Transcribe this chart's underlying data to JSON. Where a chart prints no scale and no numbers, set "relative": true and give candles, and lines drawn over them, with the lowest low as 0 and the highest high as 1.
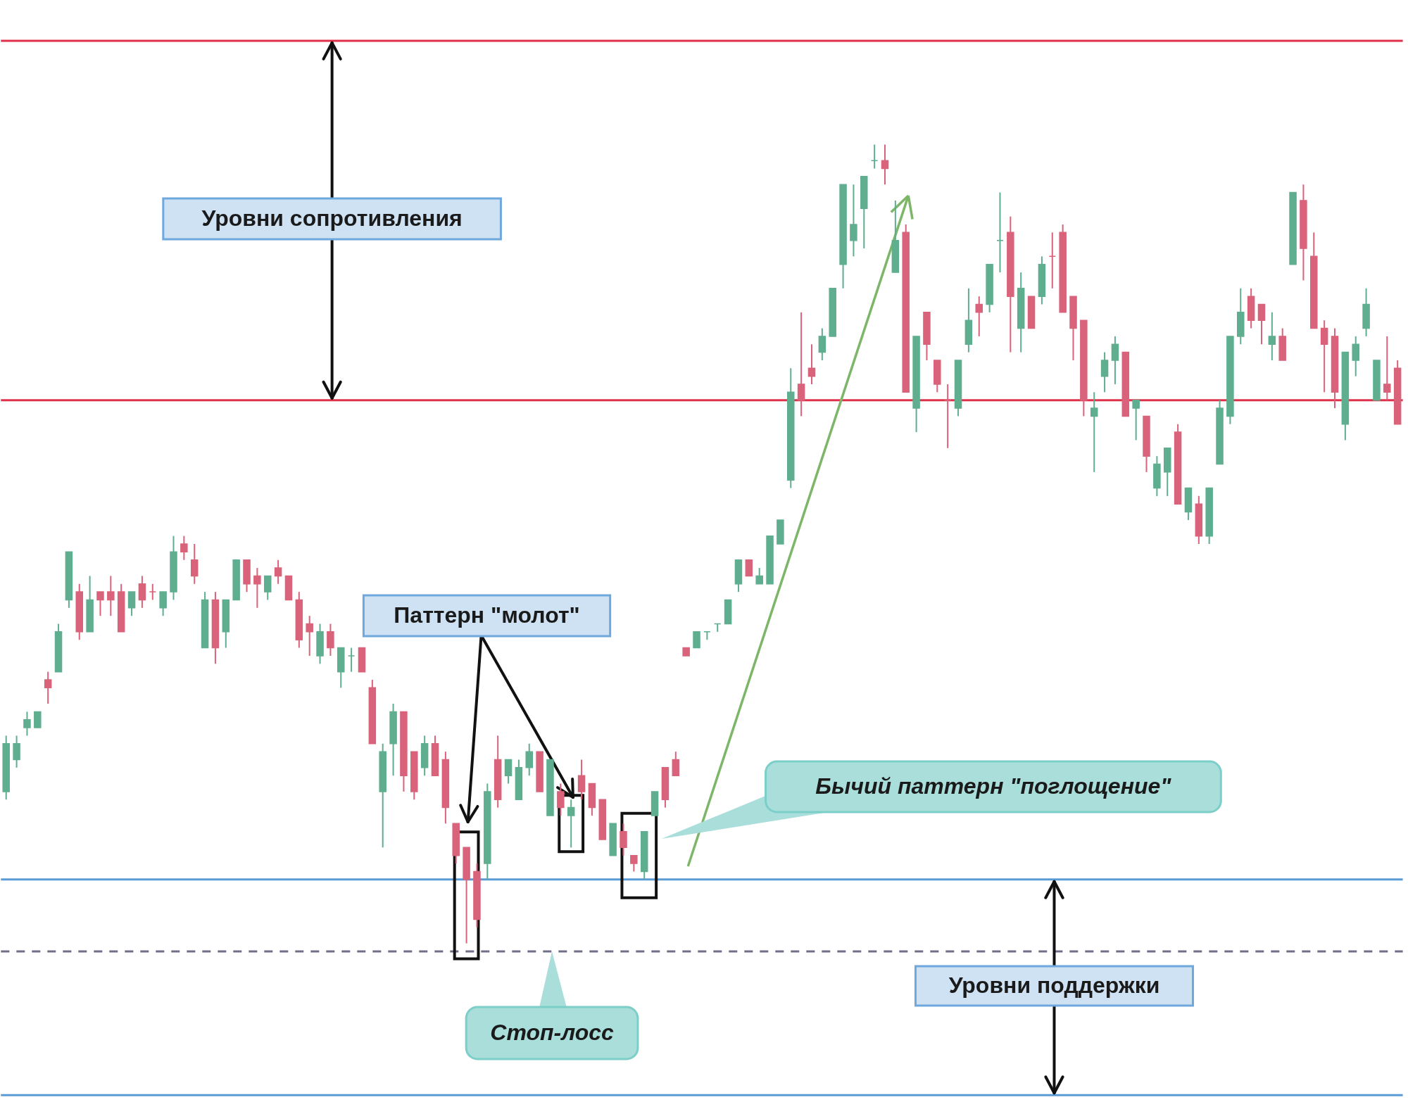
{
  "chart_data": {
    "type": "candlestick",
    "relative": true,
    "categories": [
      null,
      null,
      null,
      null,
      null,
      null,
      null,
      null,
      null,
      null,
      null,
      null,
      null,
      null,
      null,
      null,
      null,
      null,
      null,
      null,
      null,
      null,
      null,
      null,
      null,
      null,
      null,
      null,
      null,
      null,
      null,
      null,
      null,
      null,
      null,
      null,
      null,
      null,
      null,
      null,
      null,
      null,
      null,
      null,
      null,
      null,
      null,
      null,
      null,
      null,
      null,
      null,
      null,
      null,
      null,
      null,
      null,
      null,
      null,
      null,
      null,
      null,
      null,
      null,
      null,
      null,
      null,
      null,
      null,
      null,
      null,
      null,
      null,
      null,
      null,
      null,
      null,
      null,
      null,
      null,
      null,
      null,
      null,
      null,
      null,
      null,
      null,
      null,
      null,
      null,
      null,
      null,
      null,
      null,
      null,
      null,
      null,
      null,
      null,
      null,
      null,
      null,
      null,
      null,
      null,
      null,
      null,
      null,
      null,
      null,
      null,
      null,
      null,
      null,
      null,
      null,
      null,
      null,
      null,
      null,
      null,
      null,
      null,
      null,
      null,
      null,
      null,
      null,
      null,
      null,
      null,
      null,
      null,
      null
    ],
    "ohlc": [
      [
        0.19,
        0.26,
        0.18,
        0.25
      ],
      [
        0.23,
        0.26,
        0.22,
        0.25
      ],
      [
        0.27,
        0.29,
        0.26,
        0.28
      ],
      [
        0.27,
        0.29,
        0.27,
        0.29
      ],
      [
        0.33,
        0.34,
        0.3,
        0.32
      ],
      [
        0.34,
        0.4,
        0.34,
        0.39
      ],
      [
        0.43,
        0.49,
        0.42,
        0.49
      ],
      [
        0.44,
        0.45,
        0.38,
        0.39
      ],
      [
        0.39,
        0.46,
        0.39,
        0.43
      ],
      [
        0.44,
        0.44,
        0.41,
        0.43
      ],
      [
        0.44,
        0.46,
        0.41,
        0.43
      ],
      [
        0.44,
        0.45,
        0.39,
        0.39
      ],
      [
        0.42,
        0.44,
        0.41,
        0.44
      ],
      [
        0.45,
        0.46,
        0.42,
        0.43
      ],
      [
        0.44,
        0.45,
        0.43,
        0.44
      ],
      [
        0.42,
        0.44,
        0.41,
        0.44
      ],
      [
        0.44,
        0.51,
        0.43,
        0.49
      ],
      [
        0.5,
        0.51,
        0.48,
        0.49
      ],
      [
        0.48,
        0.5,
        0.45,
        0.46
      ],
      [
        0.37,
        0.44,
        0.37,
        0.43
      ],
      [
        0.43,
        0.44,
        0.35,
        0.37
      ],
      [
        0.39,
        0.43,
        0.37,
        0.43
      ],
      [
        0.43,
        0.48,
        0.43,
        0.48
      ],
      [
        0.48,
        0.48,
        0.44,
        0.45
      ],
      [
        0.46,
        0.47,
        0.42,
        0.45
      ],
      [
        0.44,
        0.46,
        0.43,
        0.46
      ],
      [
        0.47,
        0.48,
        0.45,
        0.46
      ],
      [
        0.46,
        0.46,
        0.43,
        0.43
      ],
      [
        0.43,
        0.44,
        0.37,
        0.38
      ],
      [
        0.4,
        0.41,
        0.36,
        0.39
      ],
      [
        0.36,
        0.4,
        0.35,
        0.39
      ],
      [
        0.39,
        0.4,
        0.36,
        0.37
      ],
      [
        0.34,
        0.37,
        0.32,
        0.37
      ],
      [
        0.36,
        0.37,
        0.34,
        0.36
      ],
      [
        0.37,
        0.37,
        0.34,
        0.34
      ],
      [
        0.32,
        0.33,
        0.25,
        0.25
      ],
      [
        0.19,
        0.25,
        0.12,
        0.24
      ],
      [
        0.25,
        0.3,
        0.21,
        0.29
      ],
      [
        0.29,
        0.29,
        0.19,
        0.21
      ],
      [
        0.24,
        0.24,
        0.18,
        0.19
      ],
      [
        0.22,
        0.26,
        0.21,
        0.25
      ],
      [
        0.25,
        0.26,
        0.21,
        0.21
      ],
      [
        0.23,
        0.24,
        0.15,
        0.17
      ],
      [
        0.15,
        0.15,
        0.1,
        0.11
      ],
      [
        0.12,
        0.12,
        0.0,
        0.08
      ],
      [
        0.09,
        0.1,
        0.02,
        0.03
      ],
      [
        0.1,
        0.2,
        0.08,
        0.19
      ],
      [
        0.23,
        0.26,
        0.17,
        0.18
      ],
      [
        0.21,
        0.23,
        0.2,
        0.23
      ],
      [
        0.18,
        0.23,
        0.18,
        0.22
      ],
      [
        0.22,
        0.25,
        0.21,
        0.24
      ],
      [
        0.24,
        0.24,
        0.19,
        0.19
      ],
      [
        0.16,
        0.23,
        0.16,
        0.23
      ],
      [
        0.19,
        0.2,
        0.16,
        0.17
      ],
      [
        0.16,
        0.18,
        0.12,
        0.17
      ],
      [
        0.21,
        0.23,
        0.18,
        0.19
      ],
      [
        0.2,
        0.2,
        0.16,
        0.17
      ],
      [
        0.18,
        0.18,
        0.13,
        0.13
      ],
      [
        0.11,
        0.15,
        0.11,
        0.15
      ],
      [
        0.14,
        0.15,
        0.11,
        0.12
      ],
      [
        0.11,
        0.11,
        0.09,
        0.1
      ],
      [
        0.09,
        0.14,
        0.08,
        0.14
      ],
      [
        0.16,
        0.19,
        0.16,
        0.19
      ],
      [
        0.22,
        0.22,
        0.17,
        0.18
      ],
      [
        0.23,
        0.24,
        0.21,
        0.21
      ],
      [
        0.37,
        0.37,
        0.36,
        0.36
      ],
      [
        0.37,
        0.39,
        0.37,
        0.39
      ],
      [
        0.39,
        0.39,
        0.38,
        0.39
      ],
      [
        0.4,
        0.4,
        0.39,
        0.4
      ],
      [
        0.4,
        0.43,
        0.4,
        0.43
      ],
      [
        0.45,
        0.48,
        0.44,
        0.48
      ],
      [
        0.48,
        0.48,
        0.46,
        0.46
      ],
      [
        0.45,
        0.47,
        0.45,
        0.46
      ],
      [
        0.45,
        0.51,
        0.45,
        0.51
      ],
      [
        0.5,
        0.53,
        0.5,
        0.53
      ],
      [
        0.58,
        0.72,
        0.57,
        0.69
      ],
      [
        0.7,
        0.79,
        0.66,
        0.68
      ],
      [
        0.72,
        0.75,
        0.7,
        0.71
      ],
      [
        0.74,
        0.77,
        0.73,
        0.76
      ],
      [
        0.76,
        0.82,
        0.76,
        0.82
      ],
      [
        0.85,
        0.95,
        0.82,
        0.95
      ],
      [
        0.88,
        0.95,
        0.86,
        0.9
      ],
      [
        0.92,
        0.96,
        0.87,
        0.96
      ],
      [
        0.98,
        1.0,
        0.97,
        0.98
      ],
      [
        0.98,
        1.0,
        0.95,
        0.97
      ],
      [
        0.84,
        0.93,
        0.84,
        0.88
      ],
      [
        0.89,
        0.9,
        0.69,
        0.69
      ],
      [
        0.67,
        0.76,
        0.64,
        0.76
      ],
      [
        0.79,
        0.79,
        0.73,
        0.75
      ],
      [
        0.73,
        0.73,
        0.69,
        0.7
      ],
      [
        0.68,
        0.7,
        0.62,
        0.68
      ],
      [
        0.67,
        0.73,
        0.66,
        0.73
      ],
      [
        0.75,
        0.82,
        0.74,
        0.78
      ],
      [
        0.8,
        0.81,
        0.76,
        0.79
      ],
      [
        0.8,
        0.85,
        0.79,
        0.85
      ],
      [
        0.88,
        0.94,
        0.84,
        0.88
      ],
      [
        0.89,
        0.91,
        0.74,
        0.81
      ],
      [
        0.77,
        0.84,
        0.74,
        0.82
      ],
      [
        0.81,
        0.81,
        0.77,
        0.77
      ],
      [
        0.81,
        0.86,
        0.8,
        0.85
      ],
      [
        0.86,
        0.89,
        0.82,
        0.86
      ],
      [
        0.89,
        0.9,
        0.79,
        0.79
      ],
      [
        0.81,
        0.81,
        0.73,
        0.77
      ],
      [
        0.78,
        0.78,
        0.66,
        0.68
      ],
      [
        0.66,
        0.69,
        0.59,
        0.67
      ],
      [
        0.71,
        0.74,
        0.69,
        0.73
      ],
      [
        0.73,
        0.76,
        0.7,
        0.75
      ],
      [
        0.74,
        0.74,
        0.66,
        0.66
      ],
      [
        0.67,
        0.68,
        0.63,
        0.68
      ],
      [
        0.66,
        0.66,
        0.59,
        0.61
      ],
      [
        0.57,
        0.61,
        0.56,
        0.6
      ],
      [
        0.59,
        0.62,
        0.56,
        0.62
      ],
      [
        0.64,
        0.65,
        0.55,
        0.55
      ],
      [
        0.54,
        0.57,
        0.53,
        0.57
      ],
      [
        0.55,
        0.56,
        0.5,
        0.51
      ],
      [
        0.51,
        0.57,
        0.5,
        0.57
      ],
      [
        0.6,
        0.68,
        0.6,
        0.67
      ],
      [
        0.66,
        0.76,
        0.65,
        0.76
      ],
      [
        0.76,
        0.82,
        0.75,
        0.79
      ],
      [
        0.81,
        0.82,
        0.77,
        0.78
      ],
      [
        0.8,
        0.8,
        0.75,
        0.78
      ],
      [
        0.75,
        0.79,
        0.73,
        0.76
      ],
      [
        0.76,
        0.77,
        0.73,
        0.73
      ],
      [
        0.85,
        0.94,
        0.85,
        0.94
      ],
      [
        0.93,
        0.95,
        0.83,
        0.87
      ],
      [
        0.86,
        0.89,
        0.77,
        0.77
      ],
      [
        0.77,
        0.78,
        0.69,
        0.75
      ],
      [
        0.76,
        0.77,
        0.67,
        0.69
      ],
      [
        0.65,
        0.74,
        0.63,
        0.74
      ],
      [
        0.73,
        0.76,
        0.71,
        0.75
      ],
      [
        0.77,
        0.82,
        0.76,
        0.8
      ],
      [
        0.68,
        0.73,
        0.68,
        0.73
      ],
      [
        0.7,
        0.76,
        0.68,
        0.69
      ],
      [
        0.72,
        0.73,
        0.65,
        0.65
      ]
    ],
    "colors": [
      "#5fae8f",
      "#5fae8f",
      "#5fae8f",
      "#5fae8f",
      "#d9637a",
      "#5fae8f",
      "#5fae8f",
      "#d9637a",
      "#5fae8f",
      "#d9637a",
      "#d9637a",
      "#d9637a",
      "#5fae8f",
      "#d9637a",
      "#d9637a",
      "#5fae8f",
      "#5fae8f",
      "#d9637a",
      "#d9637a",
      "#5fae8f",
      "#d9637a",
      "#5fae8f",
      "#5fae8f",
      "#d9637a",
      "#d9637a",
      "#5fae8f",
      "#d9637a",
      "#d9637a",
      "#d9637a",
      "#d9637a",
      "#5fae8f",
      "#d9637a",
      "#5fae8f",
      "#5fae8f",
      "#d9637a",
      "#d9637a",
      "#5fae8f",
      "#5fae8f",
      "#d9637a",
      "#d9637a",
      "#5fae8f",
      "#d9637a",
      "#d9637a",
      "#d9637a",
      "#d9637a",
      "#d9637a",
      "#5fae8f",
      "#d9637a",
      "#5fae8f",
      "#5fae8f",
      "#5fae8f",
      "#d9637a",
      "#5fae8f",
      "#d9637a",
      "#5fae8f",
      "#d9637a",
      "#d9637a",
      "#d9637a",
      "#5fae8f",
      "#d9637a",
      "#d9637a",
      "#5fae8f",
      "#5fae8f",
      "#d9637a",
      "#d9637a",
      "#d9637a",
      "#5fae8f",
      "#5fae8f",
      "#5fae8f",
      "#5fae8f",
      "#5fae8f",
      "#d9637a",
      "#5fae8f",
      "#5fae8f",
      "#5fae8f",
      "#5fae8f",
      "#d9637a",
      "#d9637a",
      "#5fae8f",
      "#5fae8f",
      "#5fae8f",
      "#5fae8f",
      "#5fae8f",
      "#5fae8f",
      "#d9637a",
      "#5fae8f",
      "#d9637a",
      "#5fae8f",
      "#d9637a",
      "#d9637a",
      "#d9637a",
      "#5fae8f",
      "#5fae8f",
      "#d9637a",
      "#5fae8f",
      "#5fae8f",
      "#d9637a",
      "#5fae8f",
      "#d9637a",
      "#5fae8f",
      "#d9637a",
      "#d9637a",
      "#d9637a",
      "#d9637a",
      "#5fae8f",
      "#5fae8f",
      "#5fae8f",
      "#d9637a",
      "#5fae8f",
      "#d9637a",
      "#5fae8f",
      "#5fae8f",
      "#d9637a",
      "#5fae8f",
      "#d9637a",
      "#5fae8f",
      "#5fae8f",
      "#5fae8f",
      "#5fae8f",
      "#d9637a",
      "#d9637a",
      "#5fae8f",
      "#d9637a",
      "#5fae8f",
      "#d9637a",
      "#d9637a",
      "#d9637a",
      "#d9637a",
      "#5fae8f",
      "#5fae8f",
      "#5fae8f",
      "#5fae8f",
      "#d9637a",
      "#d9637a"
    ],
    "ref_lines": [
      {
        "axis": "y",
        "value": 1.13,
        "color": "#e0314b"
      },
      {
        "axis": "y",
        "value": 0.68,
        "color": "#e0314b"
      },
      {
        "axis": "y",
        "value": 0.08,
        "color": "#5b9bd5"
      },
      {
        "axis": "y",
        "value": -0.01,
        "color": "#6f6f8a",
        "line_style": "dashed"
      },
      {
        "axis": "y",
        "value": -0.19,
        "color": "#5b9bd5"
      }
    ],
    "annotations": [
      "Уровни сопротивления",
      "Паттерн \"молот\"",
      "Бычий паттерн \"поглощение\"",
      "Стоп-лосс",
      "Уровни поддержки"
    ]
  }
}
